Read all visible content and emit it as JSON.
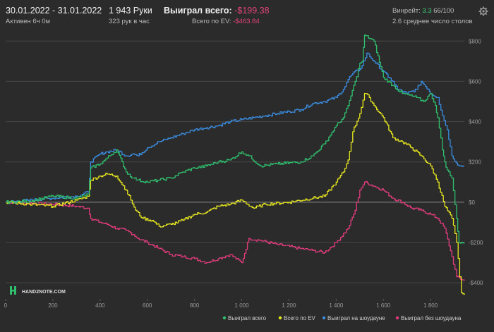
{
  "header": {
    "date_range": "30.01.2022 - 31.01.2022",
    "active_time": "Активен 6ч 0м",
    "hands": "1 943 Руки",
    "hands_per_hour": "323 рук в час",
    "won_total_label": "Выиграл всего:",
    "won_total_value": "-$199.38",
    "ev_total_label": "Всего по EV:",
    "ev_total_value": "-$463.84",
    "winrate_label": "Винрейт:",
    "winrate_value": "3.3",
    "winrate_suffix": "66/100",
    "avg_tables": "2.6 среднее число столов"
  },
  "logo": {
    "text": "HAND2NOTE.COM"
  },
  "colors": {
    "won_total": "#2fbf6e",
    "ev": "#e6e620",
    "showdown": "#3a8de0",
    "no_showdown": "#e03c7c",
    "grid": "#474747",
    "zero": "#8a8a8a"
  },
  "chart_data": {
    "type": "line",
    "title": "",
    "xlabel": "",
    "ylabel": "",
    "xlim": [
      0,
      1943
    ],
    "ylim": [
      -480,
      850
    ],
    "x_ticks": [
      0,
      200,
      400,
      600,
      800,
      1000,
      1200,
      1400,
      1600,
      1800
    ],
    "x_tick_labels": [
      "0",
      "200",
      "400",
      "600",
      "800",
      "1 000",
      "1 200",
      "1 400",
      "1 600",
      "1 800"
    ],
    "y_ticks": [
      800,
      600,
      400,
      200,
      0,
      -200,
      -400
    ],
    "y_tick_labels": [
      "$800",
      "$600",
      "$400",
      "$200",
      "$0",
      "-$200",
      "-$400"
    ],
    "legend": [
      "Выиграл всего",
      "Всего по EV",
      "Выиграл на шоудауне",
      "Выиграл без шоудауна"
    ],
    "legend_position": "bottom-right",
    "series": [
      {
        "name": "Выиграл всего",
        "color_key": "won_total",
        "x": [
          0,
          100,
          200,
          300,
          350,
          360,
          400,
          430,
          470,
          510,
          540,
          560,
          600,
          650,
          700,
          750,
          800,
          850,
          900,
          950,
          1000,
          1030,
          1080,
          1150,
          1250,
          1300,
          1350,
          1400,
          1430,
          1450,
          1480,
          1500,
          1510,
          1520,
          1560,
          1600,
          1640,
          1680,
          1740,
          1770,
          1800,
          1820,
          1830,
          1850,
          1860,
          1870,
          1890,
          1910,
          1920,
          1943
        ],
        "y": [
          0,
          5,
          30,
          20,
          40,
          170,
          190,
          220,
          260,
          150,
          120,
          110,
          100,
          110,
          120,
          150,
          170,
          180,
          200,
          210,
          250,
          230,
          180,
          190,
          200,
          230,
          290,
          380,
          420,
          480,
          600,
          690,
          700,
          830,
          800,
          620,
          580,
          540,
          520,
          500,
          540,
          480,
          420,
          260,
          200,
          160,
          120,
          -80,
          -200,
          -200
        ]
      },
      {
        "name": "Всего по EV",
        "color_key": "ev",
        "x": [
          0,
          100,
          200,
          300,
          350,
          360,
          400,
          430,
          470,
          510,
          530,
          550,
          580,
          620,
          650,
          700,
          750,
          800,
          850,
          900,
          950,
          1000,
          1050,
          1100,
          1200,
          1300,
          1350,
          1400,
          1430,
          1450,
          1470,
          1500,
          1520,
          1540,
          1560,
          1600,
          1640,
          1680,
          1720,
          1760,
          1800,
          1830,
          1860,
          1890,
          1910,
          1930,
          1943
        ],
        "y": [
          0,
          -10,
          -20,
          10,
          30,
          110,
          130,
          140,
          130,
          60,
          10,
          -40,
          -80,
          -90,
          -120,
          -110,
          -90,
          -60,
          -50,
          -20,
          -10,
          10,
          -30,
          -10,
          0,
          20,
          30,
          100,
          150,
          210,
          350,
          440,
          540,
          520,
          480,
          420,
          320,
          300,
          270,
          230,
          180,
          100,
          -20,
          -80,
          -200,
          -450,
          -460
        ]
      },
      {
        "name": "Выиграл на шоудауне",
        "color_key": "showdown",
        "x": [
          0,
          100,
          200,
          300,
          350,
          360,
          400,
          430,
          470,
          510,
          540,
          560,
          600,
          650,
          700,
          750,
          800,
          850,
          900,
          950,
          1000,
          1050,
          1100,
          1150,
          1200,
          1250,
          1300,
          1350,
          1400,
          1430,
          1450,
          1470,
          1500,
          1510,
          1530,
          1560,
          1600,
          1620,
          1640,
          1660,
          1700,
          1740,
          1760,
          1790,
          1800,
          1830,
          1850,
          1870,
          1890,
          1920,
          1943
        ],
        "y": [
          0,
          10,
          20,
          30,
          50,
          200,
          240,
          250,
          260,
          230,
          240,
          230,
          270,
          300,
          320,
          340,
          360,
          370,
          380,
          400,
          410,
          420,
          430,
          440,
          450,
          460,
          490,
          500,
          520,
          560,
          610,
          640,
          660,
          680,
          740,
          700,
          650,
          620,
          600,
          560,
          540,
          560,
          600,
          560,
          540,
          520,
          430,
          360,
          230,
          180,
          180
        ]
      },
      {
        "name": "Выиграл без шоудауна",
        "color_key": "no_showdown",
        "x": [
          0,
          100,
          200,
          300,
          350,
          360,
          400,
          430,
          470,
          510,
          540,
          560,
          600,
          650,
          700,
          750,
          800,
          850,
          900,
          950,
          1000,
          1030,
          1080,
          1150,
          1250,
          1300,
          1350,
          1400,
          1450,
          1480,
          1500,
          1520,
          1560,
          1600,
          1640,
          1680,
          1720,
          1760,
          1800,
          1830,
          1860,
          1890,
          1910,
          1943
        ],
        "y": [
          0,
          -5,
          -10,
          -20,
          -30,
          -80,
          -100,
          -110,
          -130,
          -140,
          -160,
          -180,
          -200,
          -230,
          -260,
          -270,
          -280,
          -300,
          -280,
          -260,
          -300,
          -180,
          -190,
          -210,
          -230,
          -240,
          -250,
          -200,
          -130,
          -40,
          60,
          100,
          80,
          60,
          20,
          0,
          -30,
          -40,
          -60,
          -80,
          -130,
          -270,
          -370,
          -390
        ]
      }
    ]
  }
}
